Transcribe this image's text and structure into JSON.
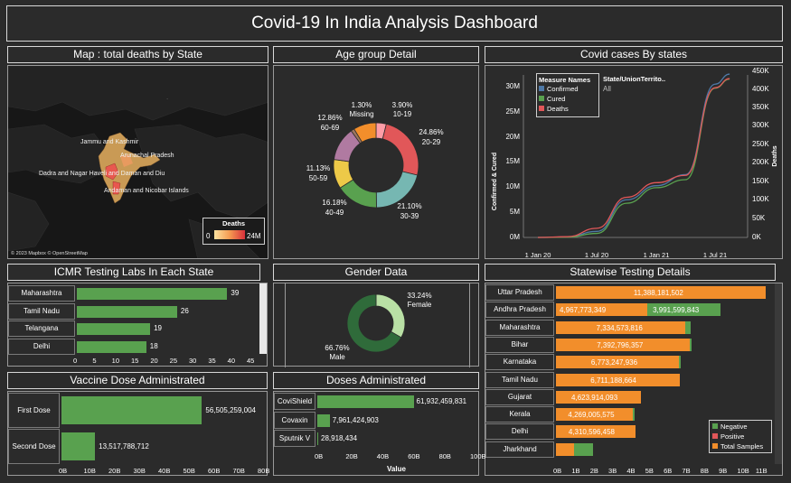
{
  "header": {
    "title": "Covid-19 In India Analysis Dashboard"
  },
  "map": {
    "title": "Map : total deaths by State",
    "labels": [
      "Jammu and Kashmir",
      "Arunachal Pradesh",
      "Dadra and Nagar Haveli and Daman and Diu",
      "Andaman and Nicobar Islands"
    ],
    "legend": {
      "title": "Deaths",
      "min": "0",
      "max": "24M"
    },
    "attribution": "© 2023 Mapbox © OpenStreetMap"
  },
  "age": {
    "title": "Age group Detail",
    "colors": {
      "0-9": "#f28e2b",
      "10-19": "#ff9da7",
      "20-29": "#e15759",
      "30-39": "#76b7b2",
      "40-49": "#59a14f",
      "50-59": "#edc948",
      "60-69": "#b07aa1",
      "Missing": "#9c755f"
    },
    "labels": [
      {
        "pct": "1.30%",
        "name": "Missing"
      },
      {
        "pct": "3.90%",
        "name": "10-19"
      },
      {
        "pct": "24.86%",
        "name": "20-29"
      },
      {
        "pct": "21.10%",
        "name": "30-39"
      },
      {
        "pct": "16.18%",
        "name": "40-49"
      },
      {
        "pct": "11.13%",
        "name": "50-59"
      },
      {
        "pct": "12.86%",
        "name": "60-69"
      }
    ]
  },
  "cases": {
    "title": "Covid cases By states",
    "legend_title": "Measure Names",
    "legend": [
      {
        "name": "Confirmed",
        "color": "#4e79a7"
      },
      {
        "name": "Cured",
        "color": "#59a14f"
      },
      {
        "name": "Deaths",
        "color": "#e15759"
      }
    ],
    "filter_title": "State/UnionTerrito..",
    "filter_value": "All",
    "ylabel_left": "Confirmed & Cured",
    "ylabel_right": "Deaths",
    "left_ticks": [
      "30M",
      "25M",
      "20M",
      "15M",
      "10M",
      "5M",
      "0M"
    ],
    "right_ticks": [
      "450K",
      "400K",
      "350K",
      "300K",
      "250K",
      "200K",
      "150K",
      "100K",
      "50K",
      "0K"
    ],
    "x_ticks": [
      "1 Jan 20",
      "1 Jul 20",
      "1 Jan 21",
      "1 Jul 21"
    ]
  },
  "icmr": {
    "title": "ICMR Testing Labs In Each State",
    "rows": [
      {
        "state": "Maharashtra",
        "value": "39"
      },
      {
        "state": "Tamil Nadu",
        "value": "26"
      },
      {
        "state": "Telangana",
        "value": "19"
      },
      {
        "state": "Delhi",
        "value": "18"
      }
    ],
    "x_ticks": [
      "0",
      "5",
      "10",
      "15",
      "20",
      "25",
      "30",
      "35",
      "40",
      "45"
    ]
  },
  "gender": {
    "title": "Gender Data",
    "female_pct": "33.24%",
    "female": "Female",
    "male_pct": "66.76%",
    "male": "Male"
  },
  "statewise": {
    "title": "Statewise Testing Details",
    "rows": [
      {
        "state": "Uttar Pradesh",
        "total": "11,388,181,502",
        "negative": ""
      },
      {
        "state": "Andhra Pradesh",
        "total": "4,967,773,349",
        "negative": "3,991,599,843"
      },
      {
        "state": "Maharashtra",
        "total": "7,334,573,816",
        "negative": ""
      },
      {
        "state": "Bihar",
        "total": "7,392,796,357",
        "negative": ""
      },
      {
        "state": "Karnataka",
        "total": "6,773,247,936",
        "negative": ""
      },
      {
        "state": "Tamil Nadu",
        "total": "6,711,188,664",
        "negative": ""
      },
      {
        "state": "Gujarat",
        "total": "4,623,914,093",
        "negative": ""
      },
      {
        "state": "Kerala",
        "total": "4,269,005,575",
        "negative": ""
      },
      {
        "state": "Delhi",
        "total": "4,310,596,458",
        "negative": ""
      },
      {
        "state": "Jharkhand",
        "total": "",
        "negative": ""
      }
    ],
    "legend": [
      {
        "name": "Negative",
        "color": "#59a14f"
      },
      {
        "name": "Positive",
        "color": "#e15759"
      },
      {
        "name": "Total Samples",
        "color": "#f28e2b"
      }
    ],
    "x_ticks": [
      "0B",
      "1B",
      "2B",
      "3B",
      "4B",
      "5B",
      "6B",
      "7B",
      "8B",
      "9B",
      "10B",
      "11B"
    ]
  },
  "vaccine": {
    "title": "Vaccine Dose Administrated",
    "rows": [
      {
        "label": "First Dose",
        "value": "56,505,259,004"
      },
      {
        "label": "Second Dose",
        "value": "13,517,788,712"
      }
    ],
    "x_ticks": [
      "0B",
      "10B",
      "20B",
      "30B",
      "40B",
      "50B",
      "60B",
      "70B",
      "80B"
    ]
  },
  "doses": {
    "title": "Doses Administrated",
    "rows": [
      {
        "label": "CoviShield",
        "value": "61,932,459,831"
      },
      {
        "label": "Covaxin",
        "value": "7,961,424,903"
      },
      {
        "label": "Sputnik V",
        "value": "28,918,434"
      }
    ],
    "x_ticks": [
      "0B",
      "20B",
      "40B",
      "60B",
      "80B",
      "100B"
    ],
    "xlabel": "Value"
  },
  "chart_data": [
    {
      "type": "bar",
      "title": "ICMR Testing Labs In Each State",
      "categories": [
        "Maharashtra",
        "Tamil Nadu",
        "Telangana",
        "Delhi"
      ],
      "values": [
        39,
        26,
        19,
        18
      ],
      "xlim": [
        0,
        45
      ]
    },
    {
      "type": "bar",
      "title": "Vaccine Dose Administrated",
      "categories": [
        "First Dose",
        "Second Dose"
      ],
      "values": [
        56505259004,
        13517788712
      ],
      "xlim": [
        0,
        80000000000
      ]
    },
    {
      "type": "bar",
      "title": "Doses Administrated",
      "categories": [
        "CoviShield",
        "Covaxin",
        "Sputnik V"
      ],
      "values": [
        61932459831,
        7961424903,
        28918434
      ],
      "xlim": [
        0,
        100000000000
      ]
    },
    {
      "type": "pie",
      "title": "Gender Data",
      "categories": [
        "Female",
        "Male"
      ],
      "values": [
        33.24,
        66.76
      ]
    },
    {
      "type": "pie",
      "title": "Age group Detail",
      "categories": [
        "Missing",
        "10-19",
        "20-29",
        "30-39",
        "40-49",
        "50-59",
        "60-69"
      ],
      "values": [
        1.3,
        3.9,
        24.86,
        21.1,
        16.18,
        11.13,
        12.86
      ]
    },
    {
      "type": "bar",
      "title": "Statewise Testing Details",
      "categories": [
        "Uttar Pradesh",
        "Andhra Pradesh",
        "Maharashtra",
        "Bihar",
        "Karnataka",
        "Tamil Nadu",
        "Gujarat",
        "Kerala",
        "Delhi",
        "Jharkhand"
      ],
      "series": [
        {
          "name": "Total Samples",
          "values": [
            11388181502,
            4967773349,
            7334573816,
            7392796357,
            6773247936,
            6711188664,
            4623914093,
            4269005575,
            4310596458,
            2000000000
          ]
        },
        {
          "name": "Negative",
          "values": [
            null,
            3991599843,
            300000000,
            100000000,
            100000000,
            null,
            null,
            100000000,
            null,
            2000000000
          ]
        }
      ],
      "xlim": [
        0,
        11500000000
      ]
    },
    {
      "type": "line",
      "title": "Covid cases By states",
      "x": [
        "2020-01-01",
        "2020-04-01",
        "2020-07-01",
        "2020-10-01",
        "2021-01-01",
        "2021-04-01",
        "2021-07-01",
        "2021-08-15"
      ],
      "series": [
        {
          "name": "Confirmed",
          "values": [
            0,
            0.1,
            1.2,
            7.5,
            10.3,
            12.5,
            30.5,
            32.5
          ]
        },
        {
          "name": "Cured",
          "values": [
            0,
            0.05,
            0.8,
            6.8,
            9.9,
            11.5,
            29.7,
            31.5
          ]
        },
        {
          "name": "Deaths",
          "values": [
            0,
            2,
            25,
            110,
            150,
            170,
            410,
            435
          ]
        }
      ],
      "ylabel": "Confirmed & Cured (M) / Deaths (K)"
    }
  ]
}
